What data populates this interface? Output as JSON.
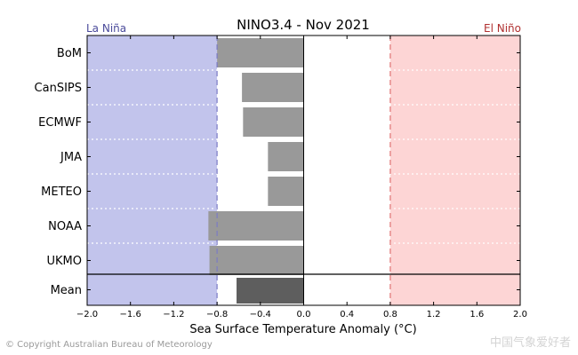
{
  "chart_data": {
    "type": "bar",
    "orientation": "horizontal",
    "title": "NINO3.4 - Nov 2021",
    "xlabel": "Sea Surface Temperature Anomaly (°C)",
    "ylabel": "",
    "xlim": [
      -2.0,
      2.0
    ],
    "xticks": [
      -2.0,
      -1.6,
      -1.2,
      -0.8,
      -0.4,
      0.0,
      0.4,
      0.8,
      1.2,
      1.6,
      2.0
    ],
    "xtick_labels": [
      "−2.0",
      "−1.6",
      "−1.2",
      "−0.8",
      "−0.4",
      "0.0",
      "0.4",
      "0.8",
      "1.2",
      "1.6",
      "2.0"
    ],
    "categories": [
      "BoM",
      "CanSIPS",
      "ECMWF",
      "JMA",
      "METEO",
      "NOAA",
      "UKMO"
    ],
    "values": [
      -0.8,
      -0.57,
      -0.56,
      -0.33,
      -0.33,
      -0.88,
      -0.87
    ],
    "mean": {
      "label": "Mean",
      "value": -0.62
    },
    "thresholds": {
      "la_nina": -0.8,
      "el_nino": 0.8
    },
    "regions": {
      "la_nina_label": "La Niña",
      "el_nino_label": "El Niño"
    },
    "colors": {
      "la_nina_fill": "#c2c4ec",
      "el_nino_fill": "#fdd5d5",
      "la_nina_line": "#7a7ac4",
      "el_nino_line": "#e07272",
      "la_nina_text": "#4a4a9a",
      "el_nino_text": "#b03030",
      "bar": "#999999",
      "mean_bar": "#5e5e5e"
    }
  },
  "footer": {
    "copyright": "© Copyright Australian Bureau of Meteorology",
    "watermark": "中国气象爱好者"
  }
}
